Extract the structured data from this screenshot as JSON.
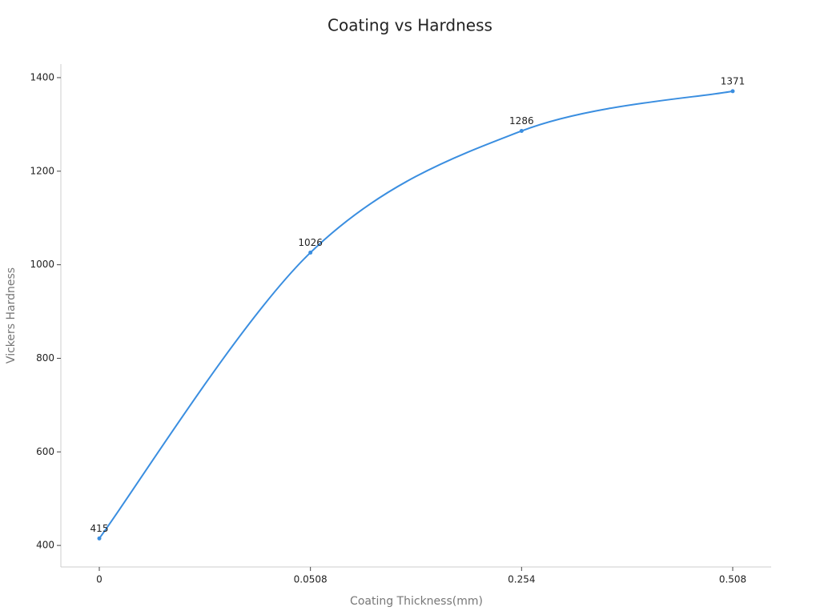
{
  "chart_data": {
    "type": "line",
    "title": "Coating vs Hardness",
    "x_label": "Coating Thickness(mm)",
    "y_label": "Vickers Hardness",
    "categories": [
      "0",
      "0.0508",
      "0.254",
      "0.508"
    ],
    "series": [
      {
        "name": "Vickers Hardness",
        "color": "#3a8ee0",
        "values": [
          415,
          1026,
          1286,
          1371
        ]
      }
    ],
    "ylim": [
      354,
      1429
    ],
    "yticks": [
      400,
      600,
      800,
      1000,
      1200,
      1400
    ],
    "smooth": true,
    "data_labels": true
  }
}
